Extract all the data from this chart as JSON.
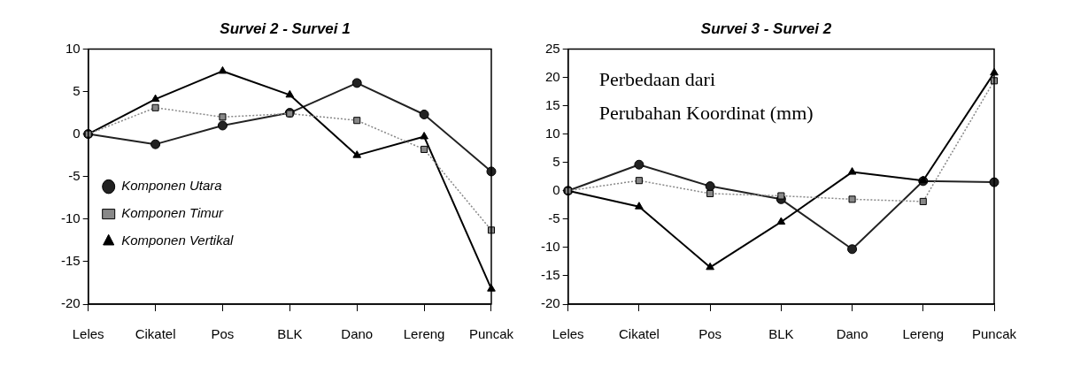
{
  "chart_data": [
    {
      "type": "line",
      "title": "Survei 2 - Survei 1",
      "categories": [
        "Leles",
        "Cikatel",
        "Pos",
        "BLK",
        "Dano",
        "Lereng",
        "Puncak"
      ],
      "ylim": [
        -20,
        10
      ],
      "yticks": [
        -20,
        -15,
        -10,
        -5,
        0,
        5,
        10
      ],
      "grid": false,
      "legend": "bottom left",
      "series": [
        {
          "name": "Komponen Utara",
          "color": "#222222",
          "marker": "circle",
          "line_style": "solid",
          "values": [
            0,
            -1.2,
            1,
            2.5,
            6,
            2.3,
            -4.4
          ]
        },
        {
          "name": "Komponen Timur",
          "color": "#888888",
          "marker": "square",
          "line_style": "dotted",
          "values": [
            0,
            3.1,
            2,
            2.4,
            1.6,
            -1.8,
            -11.3
          ]
        },
        {
          "name": "Komponen Vertikal",
          "color": "#000000",
          "marker": "triangle",
          "line_style": "solid",
          "values": [
            0,
            4.1,
            7.4,
            4.6,
            -2.5,
            -0.3,
            -18.2
          ]
        }
      ]
    },
    {
      "type": "line",
      "title": "Survei 3 - Survei 2",
      "categories": [
        "Leles",
        "Cikatel",
        "Pos",
        "BLK",
        "Dano",
        "Lereng",
        "Puncak"
      ],
      "ylim": [
        -20,
        25
      ],
      "yticks": [
        -20,
        -15,
        -10,
        -5,
        0,
        5,
        10,
        15,
        20,
        25
      ],
      "grid": false,
      "legend": false,
      "annotations": [
        "Perbedaan dari\nPerubahan Koordinat (mm)"
      ],
      "series": [
        {
          "color": "#222222",
          "marker": "circle",
          "line_style": "solid",
          "values": [
            0,
            4.6,
            0.8,
            -1.5,
            -10.3,
            1.7,
            1.5
          ]
        },
        {
          "color": "#888888",
          "marker": "square",
          "line_style": "dotted",
          "values": [
            0,
            1.8,
            -0.5,
            -0.9,
            -1.5,
            -1.9,
            19.4
          ]
        },
        {
          "color": "#000000",
          "marker": "triangle",
          "line_style": "solid",
          "values": [
            0,
            -2.8,
            -13.5,
            -5.5,
            3.3,
            1.8,
            20.8
          ]
        }
      ]
    }
  ]
}
